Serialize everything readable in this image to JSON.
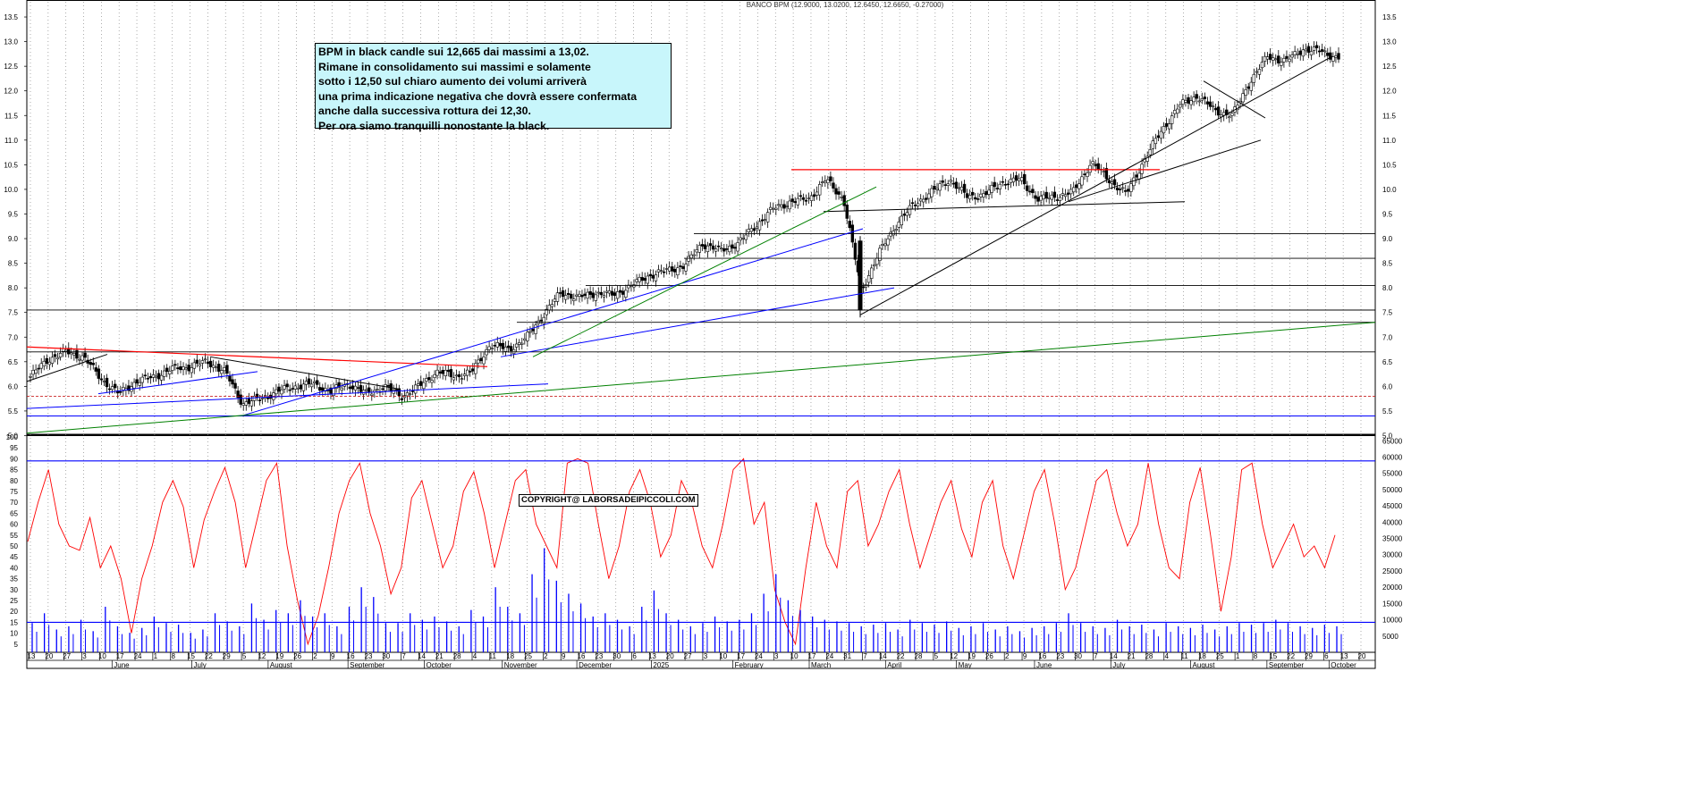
{
  "chart_data": [
    {
      "type": "candlestick",
      "title": "BANCO BPM (12.9000, 13.0200, 12.6450, 12.6650, -0.27000)",
      "ylim": [
        4.9,
        13.7
      ],
      "y_ticks": [
        "5.0",
        "5.5",
        "6.0",
        "6.5",
        "7.0",
        "7.5",
        "8.0",
        "8.5",
        "9.0",
        "9.5",
        "10.0",
        "10.5",
        "11.0",
        "11.5",
        "12.0",
        "12.5",
        "13.0",
        "13.5"
      ],
      "grid": "vertical dotted",
      "close_anchors": [
        {
          "date": "2024-05-13",
          "close": 6.2
        },
        {
          "date": "2024-05-20",
          "close": 6.55
        },
        {
          "date": "2024-05-27",
          "close": 6.7
        },
        {
          "date": "2024-06-03",
          "close": 6.6
        },
        {
          "date": "2024-06-10",
          "close": 6.15
        },
        {
          "date": "2024-06-17",
          "close": 5.85
        },
        {
          "date": "2024-06-24",
          "close": 6.1
        },
        {
          "date": "2024-07-01",
          "close": 6.2
        },
        {
          "date": "2024-07-08",
          "close": 6.35
        },
        {
          "date": "2024-07-15",
          "close": 6.4
        },
        {
          "date": "2024-07-22",
          "close": 6.5
        },
        {
          "date": "2024-07-29",
          "close": 6.3
        },
        {
          "date": "2024-08-05",
          "close": 5.65
        },
        {
          "date": "2024-08-12",
          "close": 5.75
        },
        {
          "date": "2024-08-19",
          "close": 5.9
        },
        {
          "date": "2024-08-26",
          "close": 6.0
        },
        {
          "date": "2024-09-02",
          "close": 6.05
        },
        {
          "date": "2024-09-09",
          "close": 5.9
        },
        {
          "date": "2024-09-16",
          "close": 6.05
        },
        {
          "date": "2024-09-23",
          "close": 5.85
        },
        {
          "date": "2024-09-30",
          "close": 6.0
        },
        {
          "date": "2024-10-07",
          "close": 5.8
        },
        {
          "date": "2024-10-14",
          "close": 6.0
        },
        {
          "date": "2024-10-21",
          "close": 6.3
        },
        {
          "date": "2024-10-28",
          "close": 6.2
        },
        {
          "date": "2024-11-04",
          "close": 6.3
        },
        {
          "date": "2024-11-11",
          "close": 6.85
        },
        {
          "date": "2024-11-18",
          "close": 6.75
        },
        {
          "date": "2024-11-25",
          "close": 6.95
        },
        {
          "date": "2024-12-02",
          "close": 7.45
        },
        {
          "date": "2024-12-09",
          "close": 7.9
        },
        {
          "date": "2024-12-16",
          "close": 7.8
        },
        {
          "date": "2024-12-23",
          "close": 7.9
        },
        {
          "date": "2024-12-30",
          "close": 7.85
        },
        {
          "date": "2025-01-06",
          "close": 8.05
        },
        {
          "date": "2025-01-13",
          "close": 8.25
        },
        {
          "date": "2025-01-20",
          "close": 8.35
        },
        {
          "date": "2025-01-27",
          "close": 8.45
        },
        {
          "date": "2025-02-03",
          "close": 8.9
        },
        {
          "date": "2025-02-10",
          "close": 8.75
        },
        {
          "date": "2025-02-17",
          "close": 8.9
        },
        {
          "date": "2025-02-24",
          "close": 9.25
        },
        {
          "date": "2025-03-03",
          "close": 9.6
        },
        {
          "date": "2025-03-10",
          "close": 9.75
        },
        {
          "date": "2025-03-17",
          "close": 9.8
        },
        {
          "date": "2025-03-24",
          "close": 10.2
        },
        {
          "date": "2025-03-31",
          "close": 9.8
        },
        {
          "date": "2025-04-07",
          "close": 7.95
        },
        {
          "date": "2025-04-14",
          "close": 8.7
        },
        {
          "date": "2025-04-21",
          "close": 9.3
        },
        {
          "date": "2025-04-28",
          "close": 9.7
        },
        {
          "date": "2025-05-05",
          "close": 9.95
        },
        {
          "date": "2025-05-12",
          "close": 10.2
        },
        {
          "date": "2025-05-19",
          "close": 9.85
        },
        {
          "date": "2025-05-26",
          "close": 9.9
        },
        {
          "date": "2025-06-02",
          "close": 10.15
        },
        {
          "date": "2025-06-09",
          "close": 10.2
        },
        {
          "date": "2025-06-16",
          "close": 9.8
        },
        {
          "date": "2025-06-23",
          "close": 9.85
        },
        {
          "date": "2025-06-30",
          "close": 9.95
        },
        {
          "date": "2025-07-07",
          "close": 10.55
        },
        {
          "date": "2025-07-14",
          "close": 10.2
        },
        {
          "date": "2025-07-21",
          "close": 9.9
        },
        {
          "date": "2025-07-28",
          "close": 10.6
        },
        {
          "date": "2025-08-04",
          "close": 11.2
        },
        {
          "date": "2025-08-11",
          "close": 11.7
        },
        {
          "date": "2025-08-18",
          "close": 11.9
        },
        {
          "date": "2025-08-25",
          "close": 11.6
        },
        {
          "date": "2025-09-01",
          "close": 11.5
        },
        {
          "date": "2025-09-08",
          "close": 12.2
        },
        {
          "date": "2025-09-15",
          "close": 12.7
        },
        {
          "date": "2025-09-22",
          "close": 12.6
        },
        {
          "date": "2025-09-29",
          "close": 12.85
        },
        {
          "date": "2025-10-06",
          "close": 12.8
        },
        {
          "date": "2025-10-13",
          "close": 12.665
        }
      ]
    },
    {
      "type": "line",
      "ylim": [
        0,
        100
      ],
      "y_ticks": [
        "5",
        "10",
        "15",
        "20",
        "25",
        "30",
        "35",
        "40",
        "45",
        "50",
        "55",
        "60",
        "65",
        "70",
        "75",
        "80",
        "85",
        "90",
        "95",
        "100"
      ],
      "y2_ticks": [
        "5000",
        "10000",
        "15000",
        "20000",
        "25000",
        "30000",
        "35000",
        "40000",
        "45000",
        "50000",
        "55000",
        "60000",
        "65000"
      ],
      "y2_lim": [
        0,
        67000
      ],
      "series": [
        {
          "type": "line",
          "color": "#ff0000",
          "values": [
            52,
            70,
            85,
            60,
            50,
            48,
            63,
            40,
            50,
            35,
            10,
            35,
            50,
            70,
            80,
            68,
            40,
            62,
            75,
            86,
            70,
            40,
            60,
            80,
            88,
            50,
            25,
            5,
            18,
            40,
            65,
            80,
            88,
            65,
            50,
            28,
            40,
            72,
            80,
            60,
            40,
            50,
            75,
            84,
            65,
            40,
            60,
            80,
            85,
            60,
            50,
            40,
            88,
            90,
            88,
            60,
            35,
            50,
            75,
            85,
            70,
            45,
            55,
            80,
            70,
            50,
            40,
            60,
            85,
            90,
            60,
            70,
            30,
            15,
            5,
            40,
            70,
            50,
            40,
            75,
            80,
            50,
            60,
            75,
            85,
            60,
            40,
            55,
            70,
            80,
            58,
            45,
            70,
            80,
            50,
            35,
            55,
            75,
            85,
            60,
            30,
            40,
            60,
            80,
            85,
            65,
            50,
            60,
            88,
            60,
            40,
            35,
            70,
            86,
            55,
            20,
            45,
            85,
            88,
            60,
            40,
            50,
            60,
            45,
            50,
            40,
            55
          ]
        },
        {
          "type": "bar",
          "name": "volume",
          "color": "#0000ff",
          "values": [
            9000,
            12000,
            7000,
            8000,
            10000,
            6500,
            14000,
            8000,
            6000,
            7500,
            11000,
            9000,
            8500,
            6000,
            7000,
            12000,
            9500,
            8000,
            15000,
            10000,
            13000,
            12000,
            16000,
            11000,
            12000,
            8000,
            14000,
            20000,
            17000,
            9000,
            9000,
            12000,
            10000,
            11000,
            9500,
            8000,
            13000,
            11000,
            20000,
            14000,
            12000,
            24000,
            32000,
            22000,
            18000,
            15000,
            11000,
            12000,
            10000,
            8000,
            14000,
            19000,
            12000,
            10000,
            8000,
            9000,
            11000,
            9500,
            10000,
            12000,
            18000,
            24000,
            16000,
            13000,
            11000,
            10000,
            9500,
            9000,
            8000,
            8500,
            9000,
            7000,
            10000,
            9000,
            8500,
            9500,
            7500,
            8000,
            9000,
            7000,
            8000,
            6500,
            7500,
            8000,
            9000,
            12000,
            9000,
            8000,
            7500,
            10000,
            8000,
            8500,
            7000,
            9000,
            8000,
            7500,
            8500,
            7000,
            8000,
            9000,
            8500,
            9000,
            10000,
            9000,
            8000,
            7500,
            8500,
            8000
          ]
        },
        {
          "type": "hline",
          "color": "#0000ff",
          "value": 89
        },
        {
          "type": "hline",
          "color": "#0000ff",
          "value": 15
        }
      ]
    }
  ],
  "note": {
    "lines": [
      "BPM in black candle sui 12,665 dai massimi a 13,02.",
      "Rimane in consolidamento sui massimi e solamente",
      "sotto i 12,50 sul chiaro aumento dei volumi arriverà",
      "una prima indicazione negativa che dovrà essere confermata",
      "anche dalla successiva rottura dei 12,30.",
      "Per ora siamo tranquilli nonostante la  black."
    ]
  },
  "copyright": "COPYRIGHT@ LABORSADEIPICCOLI.COM",
  "x_axis": {
    "day_ticks": [
      "13",
      "20",
      "27",
      "3",
      "10",
      "17",
      "24",
      "1",
      "8",
      "15",
      "22",
      "29",
      "5",
      "12",
      "19",
      "26",
      "2",
      "9",
      "16",
      "23",
      "30",
      "7",
      "14",
      "21",
      "28",
      "4",
      "11",
      "18",
      "25",
      "2",
      "9",
      "16",
      "23",
      "30",
      "6",
      "13",
      "20",
      "27",
      "3",
      "10",
      "17",
      "24",
      "3",
      "10",
      "17",
      "24",
      "31",
      "7",
      "14",
      "22",
      "28",
      "5",
      "12",
      "19",
      "26",
      "2",
      "9",
      "16",
      "23",
      "30",
      "7",
      "14",
      "21",
      "28",
      "4",
      "11",
      "18",
      "25",
      "1",
      "8",
      "15",
      "22",
      "29",
      "6",
      "13",
      "20"
    ],
    "month_labels": [
      "June",
      "July",
      "August",
      "September",
      "October",
      "November",
      "December",
      "2025",
      "February",
      "March",
      "April",
      "May",
      "June",
      "July",
      "August",
      "September",
      "October"
    ]
  },
  "colors": {
    "up": "#ffffff",
    "down": "#000000",
    "rsi": "#ff0000",
    "volume": "#0000ff",
    "resistance": "#ff0000",
    "support_blue": "#0000ff",
    "support_green": "#008000"
  }
}
